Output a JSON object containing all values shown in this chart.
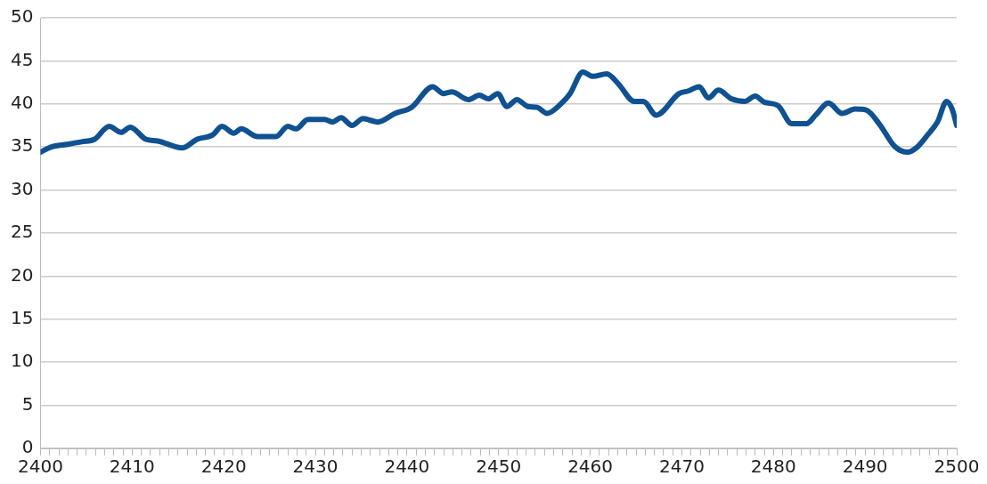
{
  "chart_data": {
    "type": "line",
    "x": [
      2400,
      2401.2,
      2402.9,
      2404.5,
      2405.9,
      2407.5,
      2408.8,
      2409.8,
      2411.5,
      2412.8,
      2415.5,
      2417.1,
      2418.8,
      2419.8,
      2421.1,
      2421.9,
      2423.7,
      2425.7,
      2427.0,
      2427.9,
      2429.2,
      2431.0,
      2431.9,
      2432.8,
      2434.0,
      2435.2,
      2436.8,
      2438.7,
      2440.5,
      2442.8,
      2444.0,
      2444.9,
      2446.7,
      2447.9,
      2448.9,
      2449.9,
      2450.9,
      2452.0,
      2453.2,
      2454.2,
      2455.3,
      2456.8,
      2457.8,
      2459.2,
      2460.3,
      2461.8,
      2463.1,
      2464.8,
      2465.8,
      2467.2,
      2469.7,
      2470.7,
      2471.9,
      2472.9,
      2474.0,
      2475.4,
      2476.9,
      2478.0,
      2479.0,
      2480.5,
      2482.0,
      2483.6,
      2484.6,
      2486.0,
      2487.5,
      2488.9,
      2490.1,
      2491.6,
      2493.2,
      2494.6,
      2495.6,
      2496.9,
      2497.9,
      2498.9,
      2499.5,
      2500
    ],
    "series": [
      {
        "color": "#0f5191",
        "values": [
          34.4,
          35.0,
          35.3,
          35.6,
          35.9,
          37.4,
          36.7,
          37.3,
          35.9,
          35.7,
          34.9,
          35.9,
          36.4,
          37.4,
          36.6,
          37.1,
          36.2,
          36.2,
          37.4,
          37.1,
          38.2,
          38.2,
          37.9,
          38.4,
          37.5,
          38.3,
          37.9,
          38.9,
          39.6,
          42.0,
          41.2,
          41.4,
          40.5,
          41.0,
          40.6,
          41.2,
          39.7,
          40.5,
          39.7,
          39.6,
          38.9,
          40.0,
          41.2,
          43.7,
          43.2,
          43.5,
          42.3,
          40.3,
          40.3,
          38.7,
          41.2,
          41.5,
          42.0,
          40.7,
          41.6,
          40.6,
          40.3,
          40.9,
          40.2,
          39.8,
          37.7,
          37.7,
          38.7,
          40.1,
          38.9,
          39.4,
          39.3,
          37.6,
          35.1,
          34.4,
          34.9,
          36.5,
          37.9,
          40.3,
          39.4,
          37.5
        ]
      }
    ],
    "xlim": [
      2400,
      2500
    ],
    "xticks": [
      2400,
      {
        "value": 2401,
        "label": null
      },
      {
        "value": 2402,
        "label": null
      },
      {
        "value": 2403,
        "label": null
      },
      {
        "value": 2404,
        "label": null
      },
      {
        "value": 2405,
        "label": null
      },
      {
        "value": 2406,
        "label": null
      },
      {
        "value": 2407,
        "label": null
      },
      {
        "value": 2408,
        "label": null
      },
      {
        "value": 2409,
        "label": null
      },
      2410,
      {
        "value": 2411,
        "label": null
      },
      {
        "value": 2412,
        "label": null
      },
      {
        "value": 2413,
        "label": null
      },
      {
        "value": 2414,
        "label": null
      },
      {
        "value": 2415,
        "label": null
      },
      {
        "value": 2416,
        "label": null
      },
      {
        "value": 2417,
        "label": null
      },
      {
        "value": 2418,
        "label": null
      },
      {
        "value": 2419,
        "label": null
      },
      2420,
      {
        "value": 2421,
        "label": null
      },
      {
        "value": 2422,
        "label": null
      },
      {
        "value": 2423,
        "label": null
      },
      {
        "value": 2424,
        "label": null
      },
      {
        "value": 2425,
        "label": null
      },
      {
        "value": 2426,
        "label": null
      },
      {
        "value": 2427,
        "label": null
      },
      {
        "value": 2428,
        "label": null
      },
      {
        "value": 2429,
        "label": null
      },
      2430,
      {
        "value": 2431,
        "label": null
      },
      {
        "value": 2432,
        "label": null
      },
      {
        "value": 2433,
        "label": null
      },
      {
        "value": 2434,
        "label": null
      },
      {
        "value": 2435,
        "label": null
      },
      {
        "value": 2436,
        "label": null
      },
      {
        "value": 2437,
        "label": null
      },
      {
        "value": 2438,
        "label": null
      },
      {
        "value": 2439,
        "label": null
      },
      2440,
      {
        "value": 2441,
        "label": null
      },
      {
        "value": 2442,
        "label": null
      },
      {
        "value": 2443,
        "label": null
      },
      {
        "value": 2444,
        "label": null
      },
      {
        "value": 2445,
        "label": null
      },
      {
        "value": 2446,
        "label": null
      },
      {
        "value": 2447,
        "label": null
      },
      {
        "value": 2448,
        "label": null
      },
      {
        "value": 2449,
        "label": null
      },
      2450,
      {
        "value": 2451,
        "label": null
      },
      {
        "value": 2452,
        "label": null
      },
      {
        "value": 2453,
        "label": null
      },
      {
        "value": 2454,
        "label": null
      },
      {
        "value": 2455,
        "label": null
      },
      {
        "value": 2456,
        "label": null
      },
      {
        "value": 2457,
        "label": null
      },
      {
        "value": 2458,
        "label": null
      },
      {
        "value": 2459,
        "label": null
      },
      2460,
      {
        "value": 2461,
        "label": null
      },
      {
        "value": 2462,
        "label": null
      },
      {
        "value": 2463,
        "label": null
      },
      {
        "value": 2464,
        "label": null
      },
      {
        "value": 2465,
        "label": null
      },
      {
        "value": 2466,
        "label": null
      },
      {
        "value": 2467,
        "label": null
      },
      {
        "value": 2468,
        "label": null
      },
      {
        "value": 2469,
        "label": null
      },
      2470,
      {
        "value": 2471,
        "label": null
      },
      {
        "value": 2472,
        "label": null
      },
      {
        "value": 2473,
        "label": null
      },
      {
        "value": 2474,
        "label": null
      },
      {
        "value": 2475,
        "label": null
      },
      {
        "value": 2476,
        "label": null
      },
      {
        "value": 2477,
        "label": null
      },
      {
        "value": 2478,
        "label": null
      },
      {
        "value": 2479,
        "label": null
      },
      2480,
      {
        "value": 2481,
        "label": null
      },
      {
        "value": 2482,
        "label": null
      },
      {
        "value": 2483,
        "label": null
      },
      {
        "value": 2484,
        "label": null
      },
      {
        "value": 2485,
        "label": null
      },
      {
        "value": 2486,
        "label": null
      },
      {
        "value": 2487,
        "label": null
      },
      {
        "value": 2488,
        "label": null
      },
      {
        "value": 2489,
        "label": null
      },
      2490,
      {
        "value": 2491,
        "label": null
      },
      {
        "value": 2492,
        "label": null
      },
      {
        "value": 2493,
        "label": null
      },
      {
        "value": 2494,
        "label": null
      },
      {
        "value": 2495,
        "label": null
      },
      {
        "value": 2496,
        "label": null
      },
      {
        "value": 2497,
        "label": null
      },
      {
        "value": 2498,
        "label": null
      },
      {
        "value": 2499,
        "label": null
      },
      2500
    ],
    "ylim": [
      0,
      50
    ],
    "yticks": [
      0,
      5,
      10,
      15,
      20,
      25,
      30,
      35,
      40,
      45,
      50
    ],
    "grid": "y",
    "marker": "none",
    "line_style": "solid"
  }
}
